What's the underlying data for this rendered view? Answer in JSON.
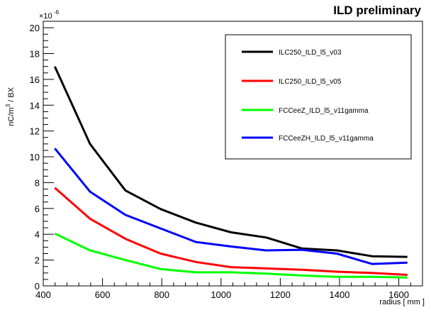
{
  "chart_data": {
    "type": "line",
    "title": "ILD preliminary",
    "xlabel": "radius [ mm ]",
    "ylabel": "nC/m",
    "ylabel_superscript": "3",
    "ylabel_suffix": " / BX",
    "y_multiplier_base": "×10",
    "y_multiplier_exponent": "-6",
    "xlim": [
      400,
      1680
    ],
    "ylim": [
      0,
      20.5
    ],
    "xticks": [
      400,
      600,
      800,
      1000,
      1200,
      1400,
      1600
    ],
    "yticks": [
      0,
      2,
      4,
      6,
      8,
      10,
      12,
      14,
      16,
      18,
      20
    ],
    "grid": false,
    "legend_position": "top-right",
    "x": [
      439,
      558,
      677,
      796,
      915,
      1034,
      1153,
      1272,
      1391,
      1510,
      1629
    ],
    "series": [
      {
        "name": "ILC250_ILD_l5_v03",
        "color": "#000000",
        "values": [
          17.0,
          11.0,
          7.4,
          5.95,
          4.9,
          4.15,
          3.75,
          2.9,
          2.75,
          2.3,
          2.25
        ]
      },
      {
        "name": "ILC250_ILD_l5_v05",
        "color": "#ff0000",
        "values": [
          7.6,
          5.2,
          3.65,
          2.5,
          1.85,
          1.45,
          1.35,
          1.25,
          1.1,
          1.0,
          0.85
        ]
      },
      {
        "name": "FCCeeZ_ILD_l5_v11gamma",
        "color": "#00ff00",
        "values": [
          4.05,
          2.75,
          2.0,
          1.3,
          1.05,
          1.05,
          0.95,
          0.8,
          0.7,
          0.7,
          0.65
        ]
      },
      {
        "name": "FCCeeZH_ILD_l5_v11gamma",
        "color": "#0000ff",
        "values": [
          10.65,
          7.3,
          5.5,
          4.45,
          3.4,
          3.05,
          2.75,
          2.8,
          2.5,
          1.7,
          1.8
        ]
      }
    ]
  }
}
